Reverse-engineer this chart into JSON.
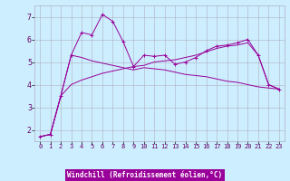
{
  "xlabel": "Windchill (Refroidissement éolien,°C)",
  "background_color": "#cceeff",
  "grid_color": "#b0b0c0",
  "line_color": "#990099",
  "x_ticks": [
    0,
    1,
    2,
    3,
    4,
    5,
    6,
    7,
    8,
    9,
    10,
    11,
    12,
    13,
    14,
    15,
    16,
    17,
    18,
    19,
    20,
    21,
    22,
    23
  ],
  "y_ticks": [
    2,
    3,
    4,
    5,
    6,
    7
  ],
  "xlim": [
    -0.5,
    23.5
  ],
  "ylim": [
    1.5,
    7.5
  ],
  "line1_x": [
    0,
    1,
    2,
    3,
    4,
    5,
    6,
    7,
    8,
    9,
    10,
    11,
    12,
    13,
    14,
    15,
    16,
    17,
    18,
    19,
    20,
    21,
    22,
    23
  ],
  "line1_y": [
    1.7,
    1.8,
    3.5,
    5.3,
    6.3,
    6.2,
    7.1,
    6.8,
    5.9,
    4.8,
    5.3,
    5.25,
    5.3,
    4.9,
    5.0,
    5.2,
    5.5,
    5.7,
    5.75,
    5.85,
    6.0,
    5.3,
    4.0,
    3.8
  ],
  "line2_x": [
    0,
    1,
    2,
    3,
    4,
    5,
    6,
    7,
    8,
    9,
    10,
    11,
    12,
    13,
    14,
    15,
    16,
    17,
    18,
    19,
    20,
    21,
    22,
    23
  ],
  "line2_y": [
    1.7,
    1.8,
    3.5,
    5.3,
    5.2,
    5.05,
    4.95,
    4.85,
    4.75,
    4.65,
    4.75,
    4.7,
    4.65,
    4.55,
    4.45,
    4.4,
    4.35,
    4.25,
    4.15,
    4.1,
    4.0,
    3.9,
    3.85,
    3.8
  ],
  "line3_x": [
    0,
    1,
    2,
    3,
    4,
    5,
    6,
    7,
    8,
    9,
    10,
    11,
    12,
    13,
    14,
    15,
    16,
    17,
    18,
    19,
    20,
    21,
    22,
    23
  ],
  "line3_y": [
    1.7,
    1.8,
    3.5,
    4.0,
    4.2,
    4.35,
    4.5,
    4.6,
    4.7,
    4.8,
    4.85,
    5.0,
    5.05,
    5.1,
    5.2,
    5.3,
    5.45,
    5.6,
    5.7,
    5.75,
    5.85,
    5.3,
    4.0,
    3.8
  ],
  "xlabel_bg": "#990099",
  "xlabel_fg": "white",
  "tick_color": "#660066",
  "tick_fontsize": 5,
  "ytick_fontsize": 6
}
